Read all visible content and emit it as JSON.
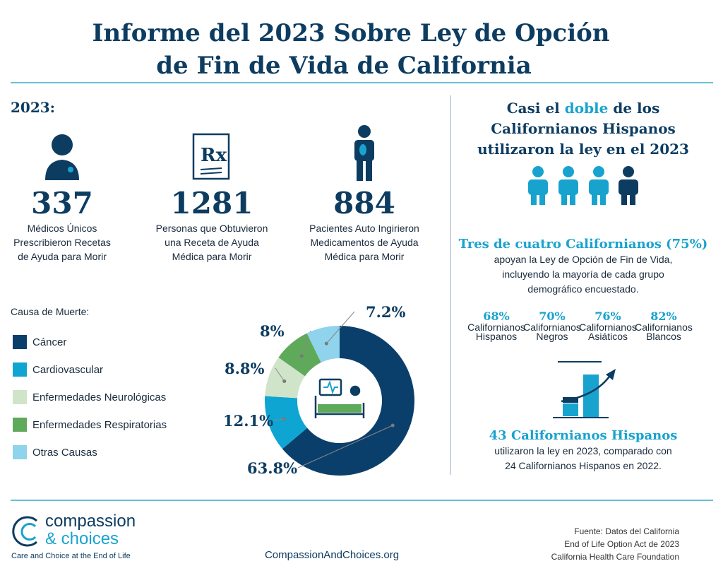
{
  "header": {
    "title_lines": [
      "Informe del 2023 Sobre Ley de Opción",
      "de Fin de Vida de California"
    ]
  },
  "year_label": "2023:",
  "stats": [
    {
      "number": "337",
      "label_lines": [
        "Médicos Únicos",
        "Prescribieron Recetas",
        "de Ayuda para Morir"
      ]
    },
    {
      "number": "1281",
      "label_lines": [
        "Personas que Obtuvieron",
        "una Receta de Ayuda",
        "Médica para Morir"
      ]
    },
    {
      "number": "884",
      "label_lines": [
        "Pacientes Auto Ingirieron",
        "Medicamentos de Ayuda",
        "Médica para Morir"
      ]
    }
  ],
  "chart_data": {
    "type": "donut",
    "legend_title": "Causa de Muerte:",
    "categories": [
      "Cáncer",
      "Cardiovascular",
      "Enfermedades Neurológicas",
      "Enfermedades Respiratorias",
      "Otras Causas"
    ],
    "values": [
      63.8,
      12.1,
      8.8,
      8,
      7.2
    ],
    "value_labels": [
      "63.8%",
      "12.1%",
      "8.8%",
      "8%",
      "7.2%"
    ],
    "colors": [
      "#0b3f6b",
      "#0ea5d3",
      "#cfe4c9",
      "#5fa95b",
      "#8fd3ec"
    ]
  },
  "right_panel": {
    "heading": {
      "before": "Casi el",
      "highlight": "doble",
      "after": "de los",
      "line2": "Californianos Hispanos",
      "line3": "utilizaron la ley en el 2023"
    },
    "support_heading": "Tres de cuatro Californianos (75%)",
    "support_lines": [
      "apoyan la Ley de Opción de Fin de Vida,",
      "incluyendo la mayoría de cada grupo",
      "demográfico encuestado."
    ],
    "groups": [
      {
        "value": "68%",
        "label_lines": [
          "Californianos",
          "Hispanos"
        ]
      },
      {
        "value": "70%",
        "label_lines": [
          "Californianos",
          "Negros"
        ]
      },
      {
        "value": "76%",
        "label_lines": [
          "Californianos",
          "Asiáticos"
        ]
      },
      {
        "value": "82%",
        "label_lines": [
          "Californianos",
          "Blancos"
        ]
      }
    ],
    "hispanic_heading": "43 Californianos Hispanos",
    "hispanic_lines": [
      "utilizaron la ley en 2023, comparado con",
      "24 Californianos Hispanos en 2022."
    ]
  },
  "footer": {
    "logo_line1": "compassion",
    "logo_line2": "& choices",
    "tagline": "Care and Choice at the End of Life",
    "url": "CompassionAndChoices.org",
    "source_lines": [
      "Fuente: Datos del California",
      "End of Life Option Act de 2023",
      "California Health Care Foundation"
    ]
  }
}
